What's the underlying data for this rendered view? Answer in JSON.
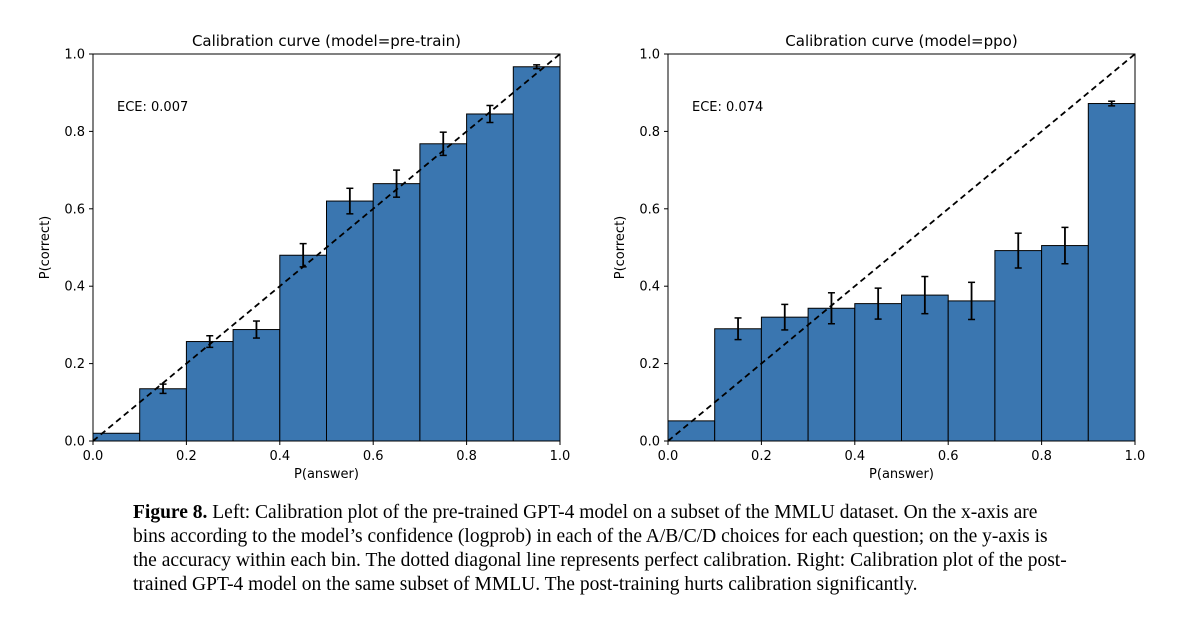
{
  "chart_data": [
    {
      "type": "bar",
      "title": "Calibration curve (model=pre-train)",
      "xlabel": "P(answer)",
      "ylabel": "P(correct)",
      "xlim": [
        0.0,
        1.0
      ],
      "ylim": [
        0.0,
        1.0
      ],
      "xticks": [
        "0.0",
        "0.2",
        "0.4",
        "0.6",
        "0.8",
        "1.0"
      ],
      "yticks": [
        "0.0",
        "0.2",
        "0.4",
        "0.6",
        "0.8",
        "1.0"
      ],
      "annotation": "ECE: 0.007",
      "bin_edges": [
        0.0,
        0.1,
        0.2,
        0.3,
        0.4,
        0.5,
        0.6,
        0.7,
        0.8,
        0.9,
        1.0
      ],
      "values": [
        0.02,
        0.135,
        0.257,
        0.288,
        0.48,
        0.62,
        0.665,
        0.768,
        0.845,
        0.967
      ],
      "errors": [
        0.0,
        0.012,
        0.015,
        0.022,
        0.03,
        0.033,
        0.035,
        0.03,
        0.022,
        0.005
      ],
      "reference_line": "diagonal dashed",
      "bar_color": "#3a76b0",
      "grid": false
    },
    {
      "type": "bar",
      "title": "Calibration curve (model=ppo)",
      "xlabel": "P(answer)",
      "ylabel": "P(correct)",
      "xlim": [
        0.0,
        1.0
      ],
      "ylim": [
        0.0,
        1.0
      ],
      "xticks": [
        "0.0",
        "0.2",
        "0.4",
        "0.6",
        "0.8",
        "1.0"
      ],
      "yticks": [
        "0.0",
        "0.2",
        "0.4",
        "0.6",
        "0.8",
        "1.0"
      ],
      "annotation": "ECE: 0.074",
      "bin_edges": [
        0.0,
        0.1,
        0.2,
        0.3,
        0.4,
        0.5,
        0.6,
        0.7,
        0.8,
        0.9,
        1.0
      ],
      "values": [
        0.052,
        0.29,
        0.32,
        0.343,
        0.355,
        0.377,
        0.362,
        0.492,
        0.505,
        0.872
      ],
      "errors": [
        0.0,
        0.028,
        0.033,
        0.04,
        0.04,
        0.048,
        0.048,
        0.045,
        0.047,
        0.006
      ],
      "reference_line": "diagonal dashed",
      "bar_color": "#3a76b0",
      "grid": false
    }
  ],
  "caption": {
    "label": "Figure 8.",
    "text": " Left: Calibration plot of the pre-trained GPT-4 model on a subset of the MMLU dataset. On the x-axis are bins according to the model’s confidence (logprob) in each of the A/B/C/D choices for each question; on the y-axis is the accuracy within each bin. The dotted diagonal line represents perfect calibration. Right: Calibration plot of the post-trained GPT-4 model on the same subset of MMLU. The post-training hurts calibration significantly."
  }
}
